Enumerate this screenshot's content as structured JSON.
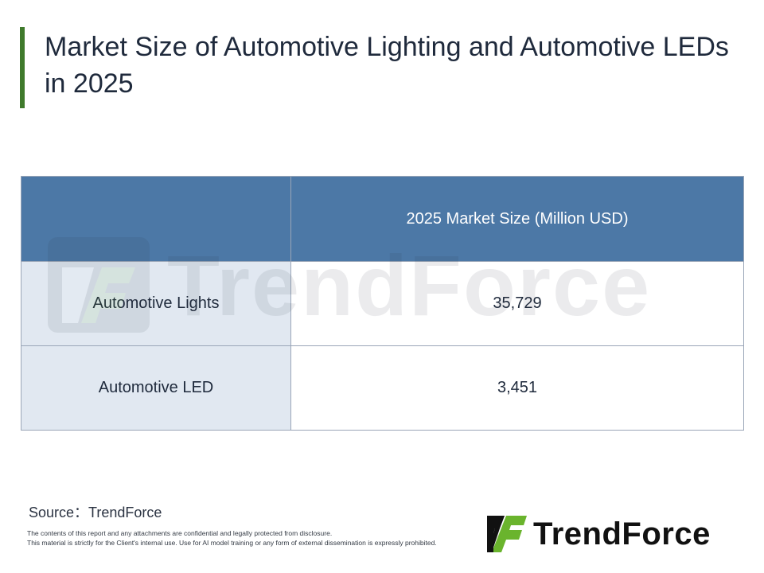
{
  "title": "Market Size of Automotive Lighting and Automotive LEDs in 2025",
  "chart_data": {
    "type": "table",
    "title": "Market Size of Automotive Lighting and Automotive LEDs in 2025",
    "columns": [
      "",
      "2025 Market Size (Million USD)"
    ],
    "rows": [
      {
        "label": "Automotive Lights",
        "value": "35,729"
      },
      {
        "label": "Automotive LED",
        "value": "3,451"
      }
    ]
  },
  "watermark": "TrendForce",
  "source": "Source：TrendForce",
  "disclaimer": {
    "line1": "The contents of this report and any attachments are confidential and legally protected from disclosure.",
    "line2": "This material is strictly for the Client's internal use. Use for AI model training or any form of external dissemination is expressly prohibited."
  },
  "logo": {
    "text": "TrendForce",
    "icon": "trendforce-logo-icon"
  },
  "colors": {
    "accent_bar": "#3f7a2c",
    "header_bg": "#4c78a6",
    "label_bg": "#e1e8f1",
    "logo_green": "#6ab42d"
  }
}
